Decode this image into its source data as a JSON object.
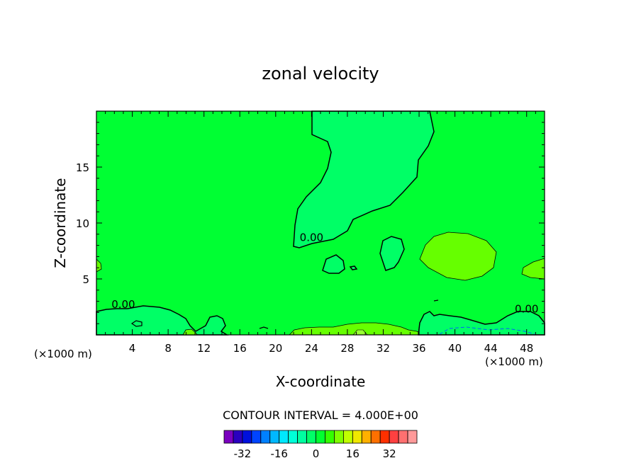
{
  "chart_data": {
    "type": "contour",
    "title": "zonal velocity",
    "xlabel": "X-coordinate",
    "ylabel": "Z-coordinate",
    "x_unit_left": "(×1000 m)",
    "x_unit_right": "(×1000 m)",
    "xlim": [
      0,
      50
    ],
    "ylim": [
      0,
      20
    ],
    "xticks": [
      4,
      8,
      12,
      16,
      20,
      24,
      28,
      32,
      36,
      40,
      44,
      48
    ],
    "yticks": [
      5,
      10,
      15
    ],
    "contour_interval_text": "CONTOUR INTERVAL = 4.000E+00",
    "contour_labels": [
      {
        "text": "0.00",
        "x": 24.0,
        "y": 8.4
      },
      {
        "text": "0.00",
        "x": 3.0,
        "y": 2.4
      },
      {
        "text": "0.00",
        "x": 48.0,
        "y": 2.0
      }
    ],
    "colorbar": {
      "colors": [
        "#7a00bf",
        "#2a00bf",
        "#0010dd",
        "#0044ff",
        "#0080ff",
        "#00b8ff",
        "#00e8ff",
        "#00ffd8",
        "#00ffa0",
        "#00ff68",
        "#00ff30",
        "#34ff00",
        "#80ff00",
        "#c0ff00",
        "#f0e800",
        "#ffb000",
        "#ff7000",
        "#ff3000",
        "#ff4040",
        "#ff7070",
        "#ff9a9a"
      ],
      "tick_labels": [
        "-32",
        "-16",
        "0",
        "16",
        "32"
      ],
      "tick_values": [
        -32,
        -16,
        0,
        16,
        32
      ],
      "range": [
        -40,
        44
      ]
    },
    "fill_colors": {
      "background": "#00ff33",
      "negative": "#00ff66",
      "positive": "#66ff00",
      "positive_light": "#99ff33"
    }
  }
}
